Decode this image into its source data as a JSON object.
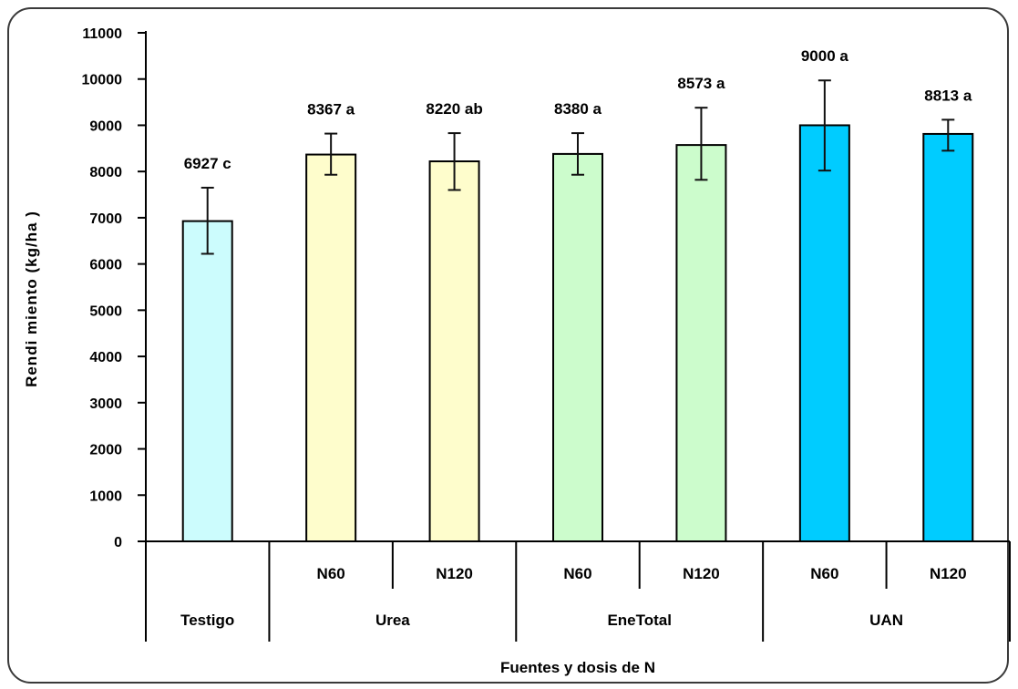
{
  "chart_data": {
    "type": "bar",
    "title": "",
    "xlabel": "Fuentes y dosis de  N",
    "ylabel": "Rendi miento  (kg/ha )",
    "ylim": [
      0,
      11000
    ],
    "yticks": [
      "0",
      "1000",
      "2000",
      "3000",
      "4000",
      "5000",
      "6000",
      "7000",
      "8000",
      "9000",
      "10000",
      "11000"
    ],
    "grid": false,
    "legend": "none",
    "bars": [
      {
        "category": "Testigo",
        "value": 6927,
        "error_low": 6220,
        "error_high": 7650,
        "label": "6927 c",
        "color": "#ccfcfd"
      },
      {
        "category": "Urea N60",
        "value": 8367,
        "error_low": 7930,
        "error_high": 8820,
        "label": "8367 a",
        "color": "#fefdcc"
      },
      {
        "category": "Urea N120",
        "value": 8220,
        "error_low": 7600,
        "error_high": 8830,
        "label": "8220  ab",
        "color": "#fefdcc"
      },
      {
        "category": "EneTotal N60",
        "value": 8380,
        "error_low": 7930,
        "error_high": 8830,
        "label": "8380 a",
        "color": "#ccfccc"
      },
      {
        "category": "EneTotal N120",
        "value": 8573,
        "error_low": 7820,
        "error_high": 9380,
        "label": "8573 a",
        "color": "#ccfccc"
      },
      {
        "category": "UAN N60",
        "value": 9000,
        "error_low": 8020,
        "error_high": 9970,
        "label": "9000 a",
        "color": "#00ccff"
      },
      {
        "category": "UAN N120",
        "value": 8813,
        "error_low": 8450,
        "error_high": 9120,
        "label": "8813 a",
        "color": "#00ccff"
      }
    ],
    "x_table": {
      "row1": [
        "",
        "N60",
        "N120",
        "N60",
        "N120",
        "N60",
        "N120"
      ],
      "row2": [
        {
          "label": "Testigo",
          "span": 1
        },
        {
          "label": "Urea",
          "span": 2
        },
        {
          "label": "EneTotal",
          "span": 2
        },
        {
          "label": "UAN",
          "span": 2
        }
      ]
    }
  }
}
